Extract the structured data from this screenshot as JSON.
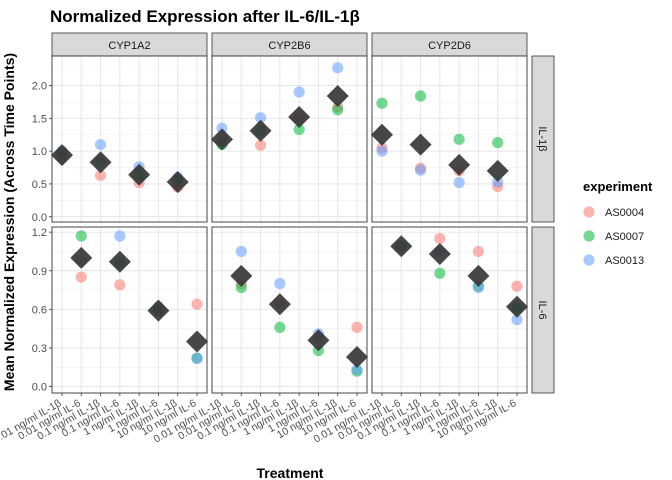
{
  "chart_data": {
    "type": "scatter",
    "title": "Normalized Expression after IL-6/IL-1β",
    "xlabel": "Treatment",
    "ylabel": "Mean Normalized Expression (Across Time Points)",
    "treatments": [
      "0.01 ng/ml IL-1β",
      "0.01 ng/ml IL-6",
      "0.1 ng/ml IL-1β",
      "0.1 ng/ml IL-6",
      "1 ng/ml IL-1β",
      "1 ng/ml IL-6",
      "10 ng/ml IL-1β",
      "10 ng/ml IL-6"
    ],
    "columns": [
      "CYP1A2",
      "CYP2B6",
      "CYP2D6"
    ],
    "rows": [
      "IL-1β",
      "IL-6"
    ],
    "row_treatments": {
      "IL-1β": [
        "0.01 ng/ml IL-1β",
        "0.1 ng/ml IL-1β",
        "1 ng/ml IL-1β",
        "10 ng/ml IL-1β"
      ],
      "IL-6": [
        "0.01 ng/ml IL-6",
        "0.1 ng/ml IL-6",
        "1 ng/ml IL-6",
        "10 ng/ml IL-6"
      ]
    },
    "row_axes": {
      "IL-1β": {
        "ylim": [
          -0.08,
          2.45
        ],
        "ticks": [
          0.0,
          0.5,
          1.0,
          1.5,
          2.0
        ],
        "tick_labels": [
          "0.0",
          "0.5",
          "1.0",
          "1.5",
          "2.0"
        ]
      },
      "IL-6": {
        "ylim": [
          -0.05,
          1.24
        ],
        "ticks": [
          0.0,
          0.3,
          0.6,
          0.9,
          1.2
        ],
        "tick_labels": [
          "0.0",
          "0.3",
          "0.6",
          "0.9",
          "1.2"
        ]
      }
    },
    "legend": {
      "title": "experiment",
      "position": "right",
      "entries": [
        {
          "name": "AS0004",
          "color": "#F8766D"
        },
        {
          "name": "AS0007",
          "color": "#00BA38"
        },
        {
          "name": "AS0013",
          "color": "#619CFF"
        }
      ]
    },
    "mean_marker_color": "#333333",
    "panels": [
      {
        "column": "CYP1A2",
        "row": "IL-1β",
        "series": {
          "AS0004": [
            0.9,
            0.63,
            0.52,
            0.45
          ],
          "AS0007": [
            0.96,
            0.84,
            0.64,
            0.57
          ],
          "AS0013": [
            1.0,
            1.1,
            0.76,
            0.6
          ]
        },
        "mean": [
          0.94,
          0.83,
          0.64,
          0.53
        ]
      },
      {
        "column": "CYP2B6",
        "row": "IL-1β",
        "series": {
          "AS0004": [
            1.2,
            1.09,
            1.5,
            1.67
          ],
          "AS0007": [
            1.1,
            1.31,
            1.33,
            1.63
          ],
          "AS0013": [
            1.35,
            1.51,
            1.9,
            2.27
          ]
        },
        "mean": [
          1.18,
          1.31,
          1.52,
          1.84
        ]
      },
      {
        "column": "CYP2D6",
        "row": "IL-1β",
        "series": {
          "AS0004": [
            1.05,
            0.74,
            0.7,
            0.46
          ],
          "AS0007": [
            1.73,
            1.84,
            1.18,
            1.13
          ],
          "AS0013": [
            1.0,
            0.71,
            0.52,
            0.53
          ]
        },
        "mean": [
          1.25,
          1.1,
          0.79,
          0.7
        ]
      },
      {
        "column": "CYP1A2",
        "row": "IL-6",
        "series": {
          "AS0004": [
            0.85,
            0.79,
            0.59,
            0.64
          ],
          "AS0007": [
            1.17,
            0.96,
            0.59,
            0.22
          ],
          "AS0013": [
            0.98,
            1.17,
            0.62,
            0.22
          ]
        },
        "mean": [
          1.0,
          0.97,
          0.59,
          0.35
        ]
      },
      {
        "column": "CYP2B6",
        "row": "IL-6",
        "series": {
          "AS0004": [
            0.8,
            0.65,
            0.38,
            0.46
          ],
          "AS0007": [
            0.77,
            0.46,
            0.28,
            0.12
          ],
          "AS0013": [
            1.05,
            0.8,
            0.41,
            0.13
          ]
        },
        "mean": [
          0.86,
          0.64,
          0.36,
          0.23
        ]
      },
      {
        "column": "CYP2D6",
        "row": "IL-6",
        "series": {
          "AS0004": [
            1.09,
            1.15,
            1.05,
            0.78
          ],
          "AS0007": [
            1.09,
            0.88,
            0.78,
            0.61
          ],
          "AS0013": [
            1.09,
            1.05,
            0.77,
            0.52
          ]
        },
        "mean": [
          1.09,
          1.03,
          0.86,
          0.62
        ]
      }
    ]
  }
}
